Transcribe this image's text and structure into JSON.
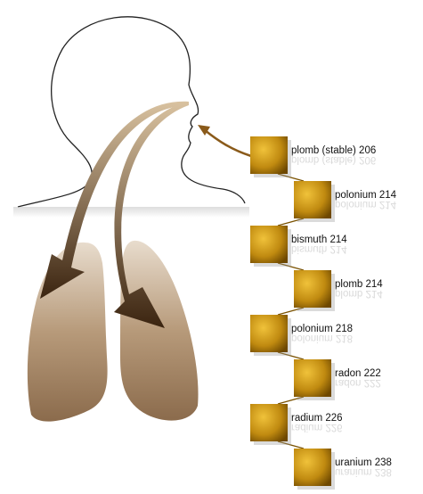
{
  "nodes": [
    {
      "label": "plomb (stable) 206"
    },
    {
      "label": "polonium 214"
    },
    {
      "label": "bismuth 214"
    },
    {
      "label": "plomb 214"
    },
    {
      "label": "polonium 218"
    },
    {
      "label": "radon 222"
    },
    {
      "label": "radium 226"
    },
    {
      "label": "uranium 238"
    }
  ]
}
